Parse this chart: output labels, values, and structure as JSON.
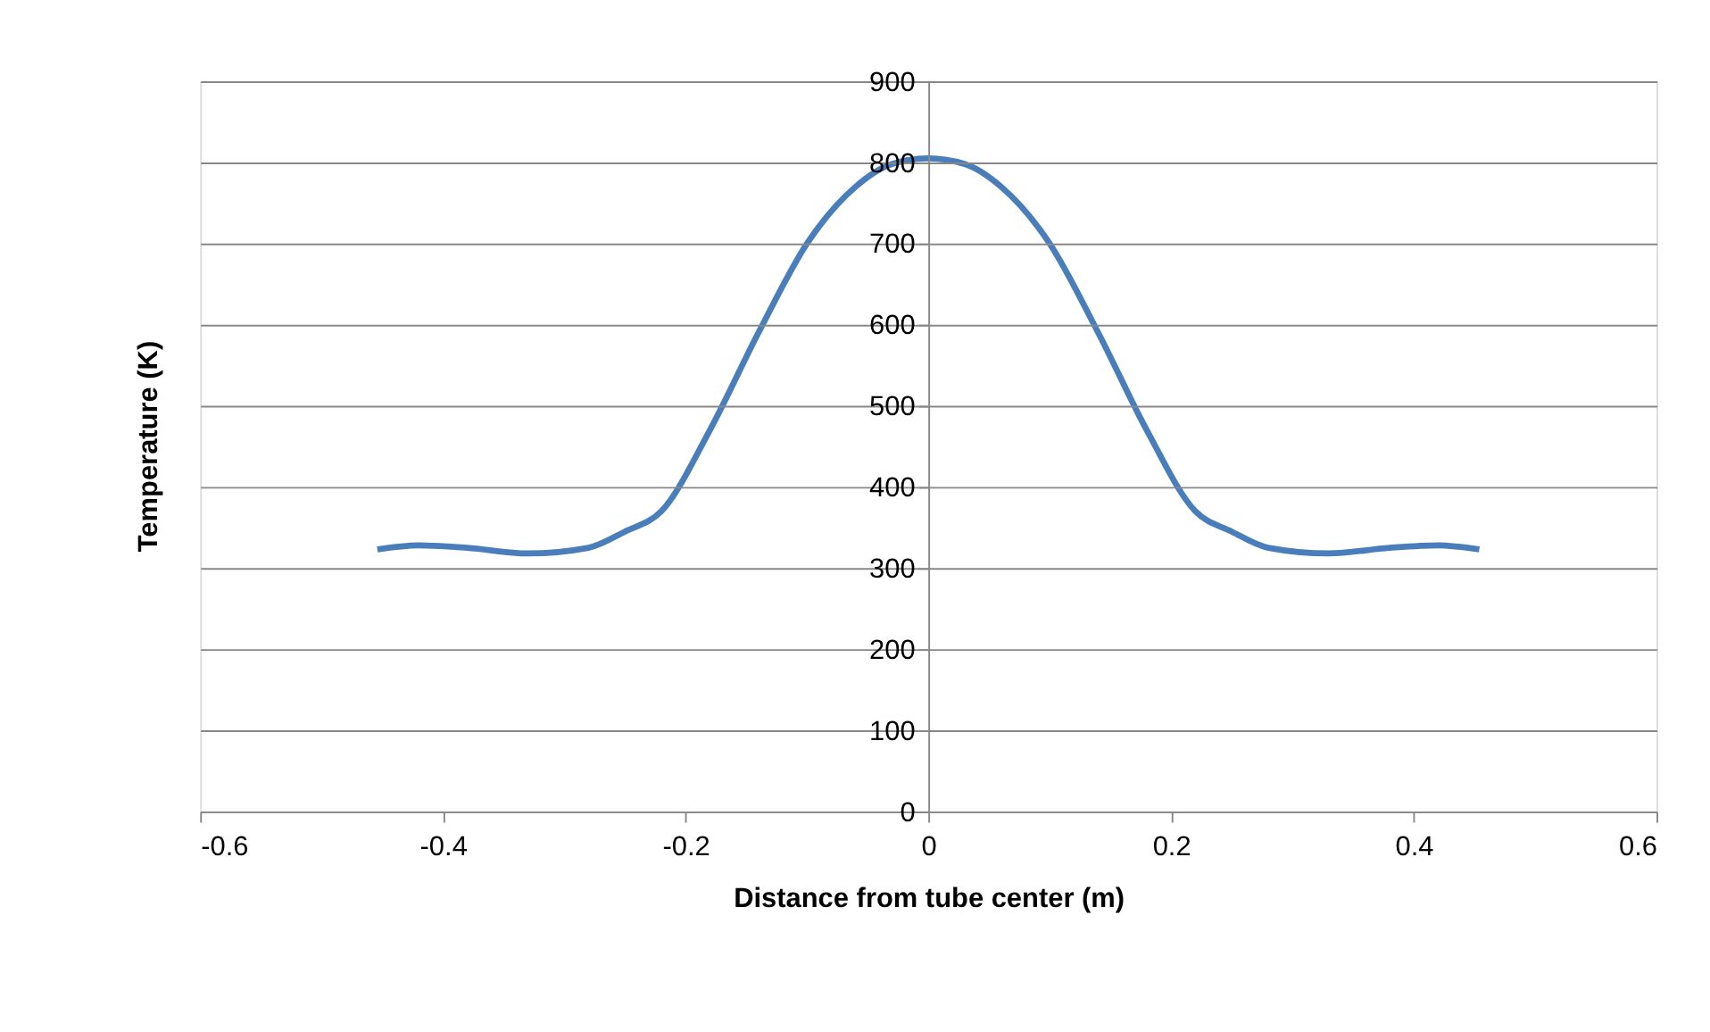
{
  "chart_data": {
    "type": "line",
    "xlabel": "Distance from tube center (m)",
    "ylabel": "Temperature (K)",
    "series": [
      {
        "color": "#4a7ebb",
        "x": [
          -0.454,
          -0.42,
          -0.38,
          -0.33,
          -0.28,
          -0.25,
          -0.22,
          -0.18,
          -0.14,
          -0.1,
          -0.06,
          -0.03,
          0,
          0.03,
          0.06,
          0.1,
          0.14,
          0.18,
          0.22,
          0.25,
          0.28,
          0.33,
          0.38,
          0.42,
          0.454
        ],
        "values": [
          323,
          328,
          325,
          318,
          325,
          345,
          370,
          470,
          590,
          700,
          770,
          798,
          805,
          798,
          770,
          700,
          590,
          470,
          370,
          345,
          325,
          318,
          325,
          328,
          323
        ]
      }
    ],
    "xlim": [
      -0.6,
      0.6
    ],
    "xticks": [
      -0.6,
      -0.4,
      -0.2,
      0,
      0.2,
      0.4,
      0.6
    ],
    "ylim": [
      0,
      900
    ],
    "yticks": [
      0,
      100,
      200,
      300,
      400,
      500,
      600,
      700,
      800,
      900
    ],
    "grid": "y",
    "legend": false,
    "marker": "none",
    "line_style": "solid"
  }
}
